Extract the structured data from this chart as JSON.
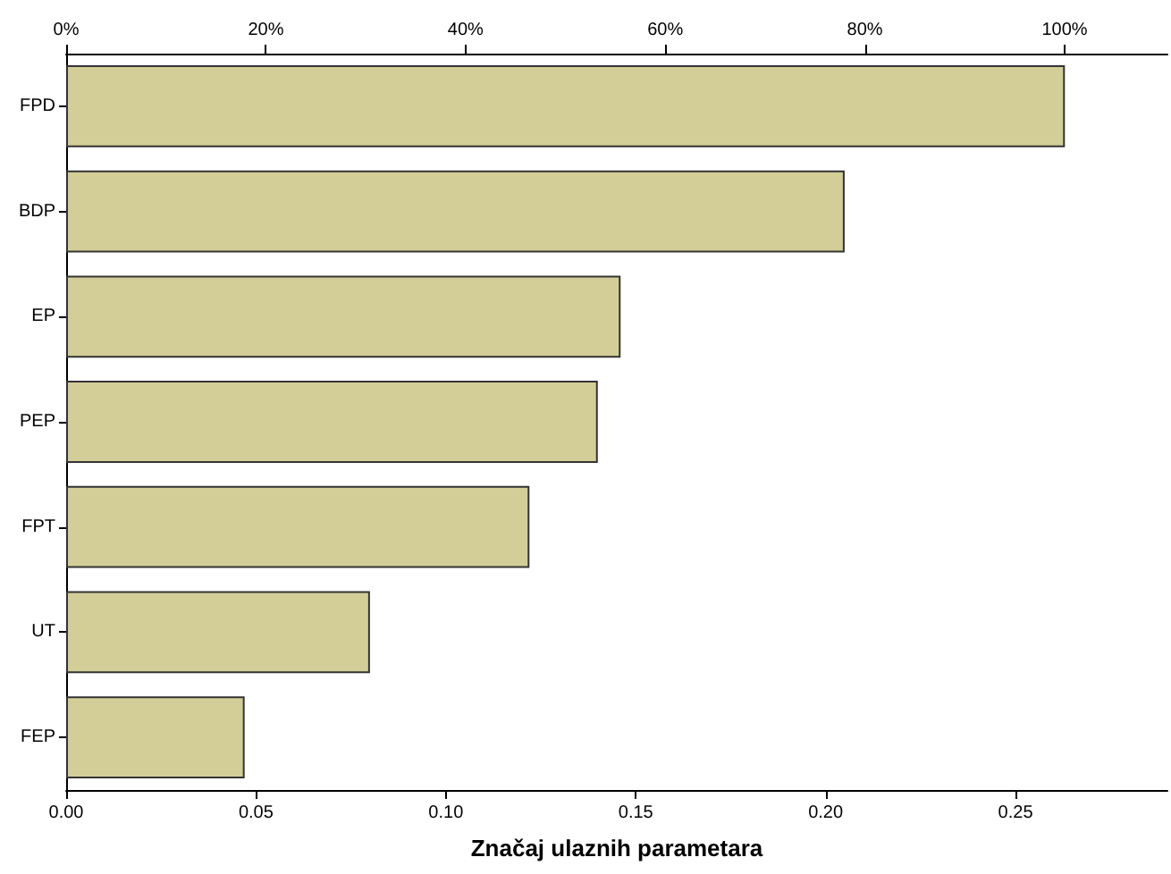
{
  "chart_data": {
    "type": "bar",
    "orientation": "horizontal",
    "xlabel": "Značaj ulaznih parametara",
    "categories": [
      "FPD",
      "BDP",
      "EP",
      "PEP",
      "FPT",
      "UT",
      "FEP"
    ],
    "values": [
      0.263,
      0.205,
      0.146,
      0.14,
      0.122,
      0.08,
      0.047
    ],
    "color": "#d3ce97",
    "xlim": [
      0,
      0.29
    ],
    "xticks": [
      {
        "value": 0,
        "label": "0.00"
      },
      {
        "value": 0.05,
        "label": "0.05"
      },
      {
        "value": 0.1,
        "label": "0.10"
      },
      {
        "value": 0.15,
        "label": "0.15"
      },
      {
        "value": 0.2,
        "label": "0.20"
      },
      {
        "value": 0.25,
        "label": "0.25"
      }
    ],
    "x2lim": [
      0,
      110.3
    ],
    "x2ticks": [
      {
        "value": 0,
        "label": "0%"
      },
      {
        "value": 20,
        "label": "20%"
      },
      {
        "value": 40,
        "label": "40%"
      },
      {
        "value": 60,
        "label": "60%"
      },
      {
        "value": 80,
        "label": "80%"
      },
      {
        "value": 100,
        "label": "100%"
      }
    ],
    "grid": false
  }
}
